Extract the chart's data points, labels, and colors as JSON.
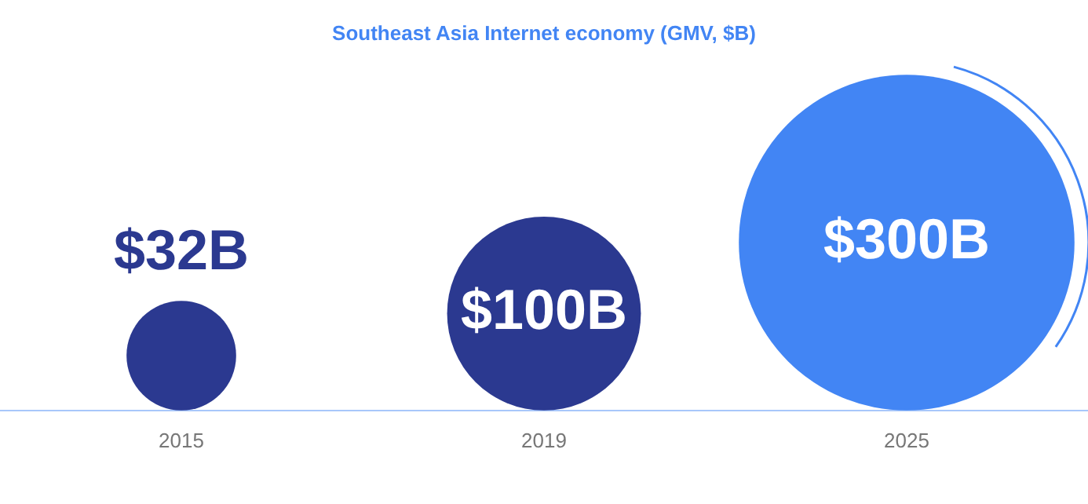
{
  "chart_data": {
    "type": "other",
    "title": "Southeast Asia Internet economy (GMV, $B)",
    "categories": [
      "2015",
      "2019",
      "2025"
    ],
    "values": [
      32,
      100,
      300
    ],
    "value_labels": [
      "$32B",
      "$100B",
      "$300B"
    ],
    "colors": [
      "#2b3990",
      "#2b3990",
      "#4285f4"
    ],
    "legend": false
  }
}
